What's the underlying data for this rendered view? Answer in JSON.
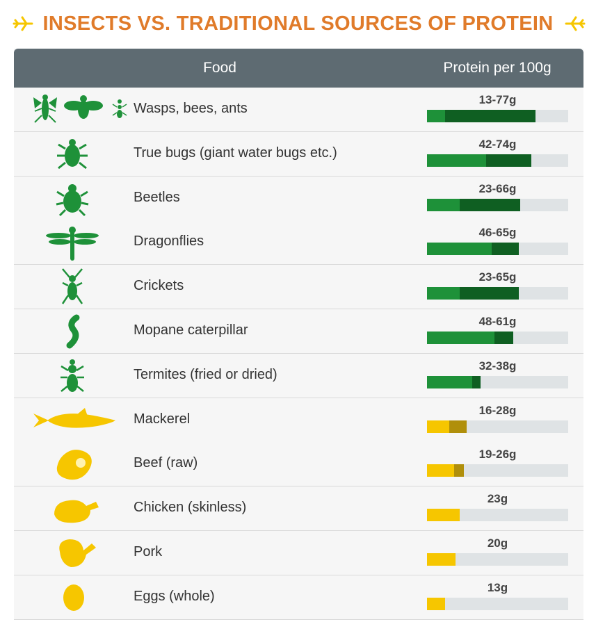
{
  "title": "INSECTS VS. TRADITIONAL SOURCES OF PROTEIN",
  "colors": {
    "title": "#e07b2a",
    "header_bg": "#5e6b72",
    "insect_light": "#1e9139",
    "insect_dark": "#0f5f22",
    "other_light": "#f6c600",
    "other_dark": "#b08f0b",
    "track": "#dfe3e5"
  },
  "table": {
    "col_food": "Food",
    "col_protein": "Protein per 100g"
  },
  "chart_data": {
    "type": "bar",
    "orientation": "horizontal",
    "title": "INSECTS VS. TRADITIONAL SOURCES OF PROTEIN",
    "xlim": [
      0,
      100
    ],
    "unit": "g",
    "rows": [
      {
        "food": "Wasps, bees, ants",
        "range_label": "13-77g",
        "min": 13,
        "max": 77,
        "group": "insect",
        "icon": "wasp-bee-ant-icon"
      },
      {
        "food": "True bugs (giant water bugs etc.)",
        "range_label": "42-74g",
        "min": 42,
        "max": 74,
        "group": "insect",
        "icon": "true-bug-icon"
      },
      {
        "food": "Beetles",
        "range_label": "23-66g",
        "min": 23,
        "max": 66,
        "group": "insect",
        "icon": "beetle-icon"
      },
      {
        "food": "Dragonflies",
        "range_label": "46-65g",
        "min": 46,
        "max": 65,
        "group": "insect",
        "icon": "dragonfly-icon"
      },
      {
        "food": "Crickets",
        "range_label": "23-65g",
        "min": 23,
        "max": 65,
        "group": "insect",
        "icon": "cricket-icon"
      },
      {
        "food": "Mopane caterpillar",
        "range_label": "48-61g",
        "min": 48,
        "max": 61,
        "group": "insect",
        "icon": "caterpillar-icon"
      },
      {
        "food": "Termites (fried or dried)",
        "range_label": "32-38g",
        "min": 32,
        "max": 38,
        "group": "insect",
        "icon": "termite-icon"
      },
      {
        "food": "Mackerel",
        "range_label": "16-28g",
        "min": 16,
        "max": 28,
        "group": "other",
        "icon": "fish-icon"
      },
      {
        "food": "Beef (raw)",
        "range_label": "19-26g",
        "min": 19,
        "max": 26,
        "group": "other",
        "icon": "steak-icon"
      },
      {
        "food": "Chicken (skinless)",
        "range_label": "23g",
        "min": 23,
        "max": 23,
        "group": "other",
        "icon": "chicken-icon"
      },
      {
        "food": "Pork",
        "range_label": "20g",
        "min": 20,
        "max": 20,
        "group": "other",
        "icon": "pork-leg-icon"
      },
      {
        "food": "Eggs (whole)",
        "range_label": "13g",
        "min": 13,
        "max": 13,
        "group": "other",
        "icon": "egg-icon"
      }
    ]
  }
}
